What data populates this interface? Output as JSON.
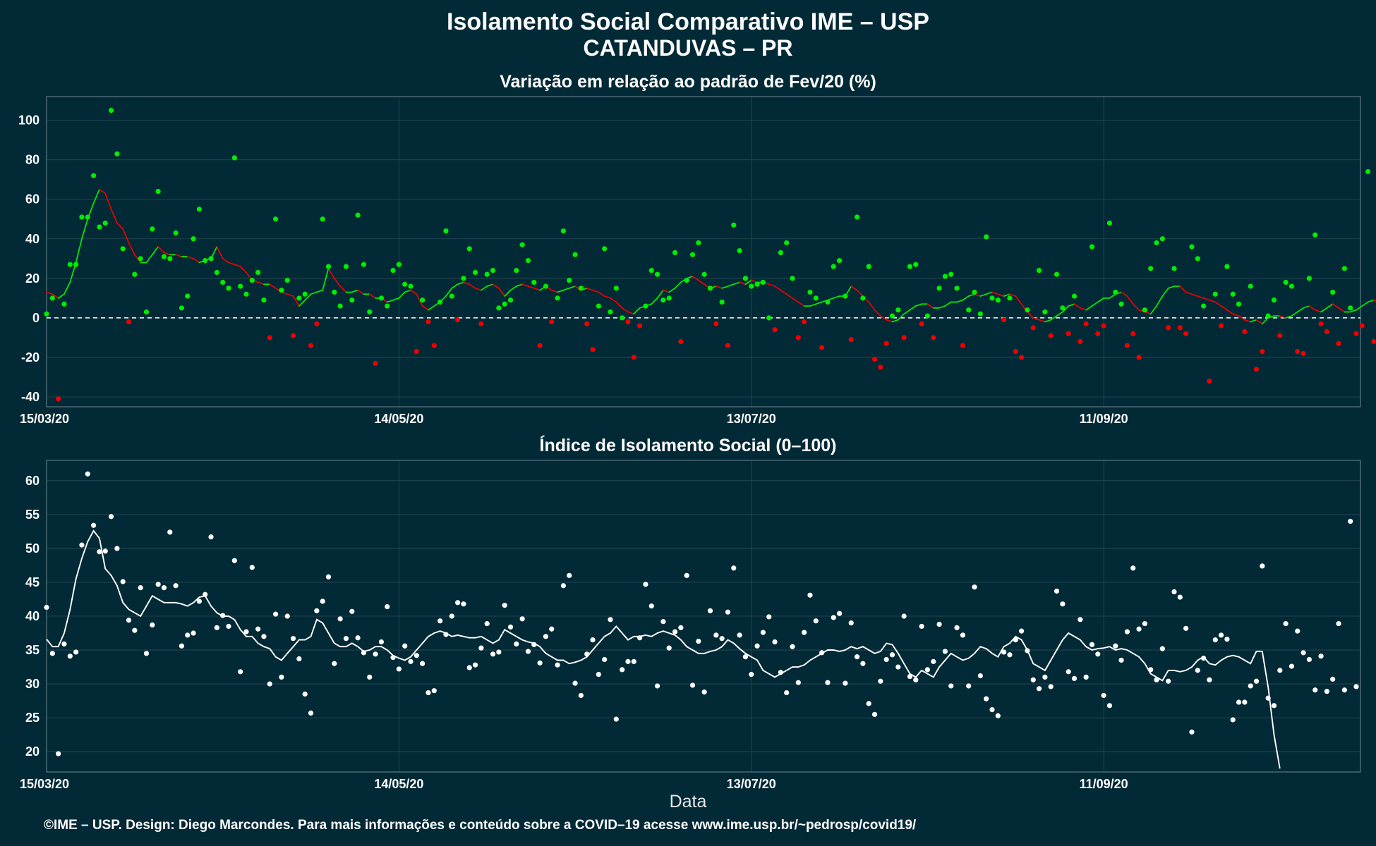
{
  "title": "Isolamento Social Comparativo IME – USP",
  "subtitle": "CATANDUVAS – PR",
  "xlabel": "Data",
  "footer": "©IME – USP. Design: Diego Marcondes. Para mais informações e conteúdo sobre a COVID–19 acesse www.ime.usp.br/~pedrosp/covid19/",
  "colors": {
    "background": "#022a36",
    "positive": "#00ee00",
    "negative": "#ee0000",
    "index": "#ffffff",
    "grid": "#2b4a55",
    "border": "#6d8790"
  },
  "chart_data": [
    {
      "type": "scatter",
      "title": "Variação em relação ao padrão de Fev/20 (%)",
      "x_ticks": [
        "15/03/20",
        "14/05/20",
        "13/07/20",
        "11/09/20"
      ],
      "y_ticks": [
        -40,
        -20,
        0,
        20,
        40,
        60,
        80,
        100
      ],
      "ylim": [
        -45,
        112
      ],
      "grid": true,
      "reference_line": 0,
      "start_date": "15/03/20",
      "days": 224,
      "points": [
        2,
        10,
        -41,
        7,
        27,
        27,
        51,
        51,
        72,
        46,
        48,
        105,
        83,
        35,
        -2,
        22,
        30,
        3,
        45,
        64,
        31,
        30,
        43,
        5,
        11,
        40,
        55,
        29,
        30,
        23,
        18,
        15,
        81,
        16,
        12,
        19,
        23,
        9,
        -10,
        50,
        14,
        19,
        -9,
        10,
        12,
        -14,
        -3,
        50,
        26,
        13,
        6,
        26,
        9,
        52,
        27,
        3,
        -23,
        10,
        6,
        24,
        27,
        17,
        16,
        -17,
        9,
        -2,
        -14,
        8,
        44,
        11,
        -1,
        20,
        35,
        23,
        -3,
        22,
        24,
        5,
        7,
        9,
        24,
        37,
        29,
        18,
        -14,
        16,
        -2,
        10,
        44,
        19,
        32,
        15,
        -3,
        -16,
        6,
        35,
        3,
        15,
        0,
        -2,
        -20,
        -4,
        6,
        24,
        22,
        9,
        10,
        33,
        -12,
        19,
        32,
        38,
        22,
        15,
        -3,
        8,
        -14,
        47,
        34,
        20,
        16,
        17,
        18,
        0,
        -6,
        33,
        38,
        20,
        -10,
        -2,
        13,
        10,
        -15,
        8,
        26,
        29,
        11,
        -11,
        51,
        10,
        26,
        -21,
        -25,
        -13,
        1,
        4,
        -10,
        26,
        27,
        -3,
        1,
        -10,
        15,
        21,
        22,
        15,
        -14,
        4,
        13,
        2,
        41,
        10,
        9,
        -1,
        10,
        -17,
        -20,
        4,
        -5,
        24,
        3,
        -9,
        22,
        5,
        -8,
        11,
        -12,
        -3,
        36,
        -8,
        -4,
        48,
        13,
        7,
        -14,
        -8,
        -20,
        4,
        25,
        38,
        40,
        -5,
        25,
        -5,
        -8,
        36,
        30,
        6,
        -32,
        12,
        -4,
        26,
        12,
        7,
        -7,
        16,
        -26,
        -17,
        1,
        9,
        -9,
        18,
        16,
        -17,
        -18,
        20,
        42,
        -3,
        -7,
        13,
        -13,
        25,
        5,
        -8,
        -4,
        74,
        -12
      ],
      "rolling_mean": [
        13,
        12,
        10,
        12,
        18,
        28,
        40,
        50,
        58,
        65,
        63,
        55,
        48,
        45,
        38,
        32,
        28,
        28,
        32,
        36,
        33,
        32,
        32,
        31,
        31,
        30,
        28,
        29,
        30,
        36,
        30,
        28,
        27,
        26,
        23,
        19,
        18,
        17,
        17,
        15,
        13,
        12,
        11,
        6,
        9,
        12,
        13,
        14,
        25,
        20,
        16,
        13,
        13,
        14,
        12,
        12,
        10,
        10,
        8,
        9,
        10,
        13,
        14,
        12,
        6,
        4,
        6,
        8,
        11,
        15,
        17,
        18,
        17,
        15,
        14,
        16,
        17,
        15,
        11,
        14,
        16,
        17,
        16,
        15,
        14,
        16,
        14,
        13,
        14,
        15,
        16,
        14,
        15,
        14,
        13,
        11,
        10,
        8,
        5,
        3,
        2,
        5,
        6,
        7,
        10,
        14,
        13,
        15,
        18,
        20,
        21,
        19,
        17,
        15,
        16,
        15,
        16,
        17,
        18,
        17,
        19,
        18,
        18,
        17,
        16,
        14,
        12,
        10,
        8,
        6,
        6,
        7,
        8,
        9,
        10,
        11,
        11,
        16,
        14,
        11,
        8,
        4,
        1,
        -1,
        -2,
        -1,
        2,
        4,
        6,
        7,
        7,
        5,
        5,
        6,
        8,
        8,
        9,
        11,
        12,
        11,
        12,
        13,
        12,
        11,
        12,
        11,
        7,
        3,
        0,
        -1,
        -2,
        -1,
        1,
        3,
        6,
        7,
        5,
        4,
        6,
        8,
        10,
        10,
        12,
        13,
        11,
        7,
        4,
        3,
        2,
        6,
        11,
        15,
        16,
        16,
        13,
        12,
        11,
        10,
        9,
        8,
        6,
        4,
        2,
        1,
        -1,
        -2,
        -1,
        -3,
        0,
        1,
        1,
        0,
        1,
        3,
        5,
        6,
        4,
        3,
        5,
        7,
        5,
        3,
        3,
        4,
        6,
        8,
        9,
        7,
        4,
        2,
        1,
        2,
        10
      ]
    },
    {
      "type": "scatter",
      "title": "Índice de Isolamento Social (0–100)",
      "x_ticks": [
        "15/03/20",
        "14/05/20",
        "13/07/20",
        "11/09/20"
      ],
      "y_ticks": [
        20,
        25,
        30,
        35,
        40,
        45,
        50,
        55,
        60
      ],
      "ylim": [
        17,
        63
      ],
      "grid": true,
      "start_date": "15/03/20",
      "days": 224,
      "points": [
        41.3,
        34.5,
        19.7,
        35.9,
        34.1,
        34.7,
        50.5,
        61,
        53.4,
        49.5,
        49.6,
        54.7,
        50,
        45.1,
        39.4,
        37.9,
        44.2,
        34.5,
        38.7,
        44.7,
        44.2,
        52.4,
        44.5,
        35.6,
        37.2,
        37.5,
        42.2,
        43.2,
        51.7,
        38.3,
        40.1,
        38.5,
        48.2,
        31.8,
        37.7,
        47.2,
        38.1,
        37,
        30,
        40.3,
        31,
        40,
        36.7,
        33.7,
        28.5,
        25.7,
        40.8,
        42.2,
        45.8,
        33,
        39.6,
        36.7,
        40.7,
        36.8,
        34.6,
        31,
        34.4,
        36.2,
        41.4,
        33.9,
        32.2,
        35.6,
        33.3,
        34.2,
        33,
        28.7,
        29,
        39.3,
        37.3,
        40,
        42,
        41.8,
        32.4,
        32.8,
        35.3,
        38.9,
        34.4,
        34.7,
        41.6,
        38.4,
        35.9,
        39.6,
        34.8,
        35.8,
        33.1,
        37,
        38.1,
        32.8,
        44.5,
        46,
        30.1,
        28.3,
        34.4,
        36.5,
        31.4,
        33.6,
        39.5,
        24.8,
        32.1,
        33.3,
        33.3,
        36.8,
        44.7,
        41.5,
        29.7,
        39.2,
        35.3,
        37.7,
        38.3,
        46,
        29.8,
        36.3,
        28.8,
        40.8,
        37.2,
        36.7,
        40.6,
        47.1,
        37.2,
        34,
        31.4,
        35.6,
        37.6,
        39.9,
        36.2,
        31.7,
        28.7,
        35.5,
        30.2,
        37.6,
        43.1,
        39.3,
        34.6,
        30.2,
        39.8,
        40.4,
        30.1,
        39,
        34,
        33,
        27.1,
        25.5,
        30.4,
        33.6,
        34.3,
        32.5,
        40,
        31.1,
        30.6,
        38.5,
        32.1,
        33.3,
        38.8,
        34.8,
        29.7,
        38.3,
        37.2,
        29.7,
        44.3,
        31.2,
        27.8,
        26.2,
        25.3,
        34.7,
        34.3,
        36.5,
        37.8,
        34.9,
        30.6,
        29.3,
        31,
        29.6,
        43.7,
        41.8,
        31.8,
        30.8,
        39.5,
        31,
        35.8,
        34.4,
        28.3,
        26.8,
        35.6,
        33.5,
        37.7,
        47.1,
        38.1,
        38.9,
        32.1,
        30.6,
        35.2,
        30.4,
        43.6,
        42.8,
        38.2,
        22.9,
        32,
        33.8,
        30.6,
        36.5,
        37.2,
        36.6,
        24.7,
        27.3,
        27.3,
        29.7,
        30.4,
        47.4,
        27.9,
        26.8,
        32,
        38.9,
        32.6,
        37.8,
        34.6,
        33.6,
        29.1,
        34.1,
        28.9,
        30.7,
        38.9,
        29.1,
        54,
        29.6
      ],
      "rolling_mean": [
        36.6,
        35.5,
        35.5,
        37.5,
        41,
        45.5,
        48.5,
        51,
        52.6,
        51.5,
        47,
        46,
        44.5,
        42,
        41,
        40.5,
        40,
        41.5,
        43,
        42.5,
        42,
        42,
        42,
        41.8,
        41.5,
        42,
        42.8,
        43,
        41.5,
        40.5,
        40,
        40,
        39.5,
        38,
        37,
        37,
        36,
        35.5,
        35.2,
        34,
        33.5,
        34.5,
        35.5,
        36.5,
        36.5,
        37,
        39.5,
        39,
        37.5,
        36,
        35.5,
        35.5,
        36,
        35.5,
        34.8,
        35,
        35.5,
        35.5,
        35,
        34.2,
        33.8,
        33.5,
        34,
        35,
        36,
        37,
        37.5,
        37.8,
        37.5,
        37,
        37.2,
        37,
        36.8,
        36.8,
        37,
        36.5,
        36,
        36.5,
        38,
        37.5,
        37,
        36.5,
        36.2,
        36,
        35.5,
        34.5,
        34,
        33.5,
        33.5,
        33,
        33.2,
        33.5,
        34,
        35,
        36,
        37,
        37.5,
        38.5,
        37.5,
        36.5,
        37,
        37,
        37.2,
        37,
        37.5,
        37.8,
        37.5,
        37.2,
        36.5,
        35.5,
        35,
        34.5,
        34.5,
        34.8,
        35,
        35.5,
        36.5,
        36,
        35.2,
        34.5,
        34,
        33.5,
        32,
        31.5,
        31,
        31.5,
        32,
        32.5,
        32.5,
        32.8,
        33.5,
        34,
        34.5,
        35,
        35,
        34.8,
        35,
        35.5,
        35.2,
        35.5,
        35,
        34.5,
        34.8,
        36,
        35.8,
        34.5,
        33,
        31.5,
        31,
        32,
        31.5,
        31,
        32.5,
        33.5,
        34.5,
        34,
        33.5,
        33.8,
        34.5,
        35.5,
        35.2,
        34.5,
        34,
        35.5,
        36,
        37,
        36.5,
        35,
        33,
        32.5,
        32,
        33.5,
        35,
        36.5,
        37.5,
        37,
        36.5,
        35.5,
        35,
        35.2,
        35.3,
        35.5,
        35,
        35.2,
        35,
        34.5,
        34,
        33,
        31.5,
        31,
        30.5,
        32,
        32,
        31.8,
        32,
        32.5,
        33.5,
        34,
        33,
        32.8,
        33.5,
        34,
        34.2,
        34,
        33.5,
        33,
        34.8,
        34.8,
        29.5,
        22.5,
        17.5
      ]
    }
  ]
}
